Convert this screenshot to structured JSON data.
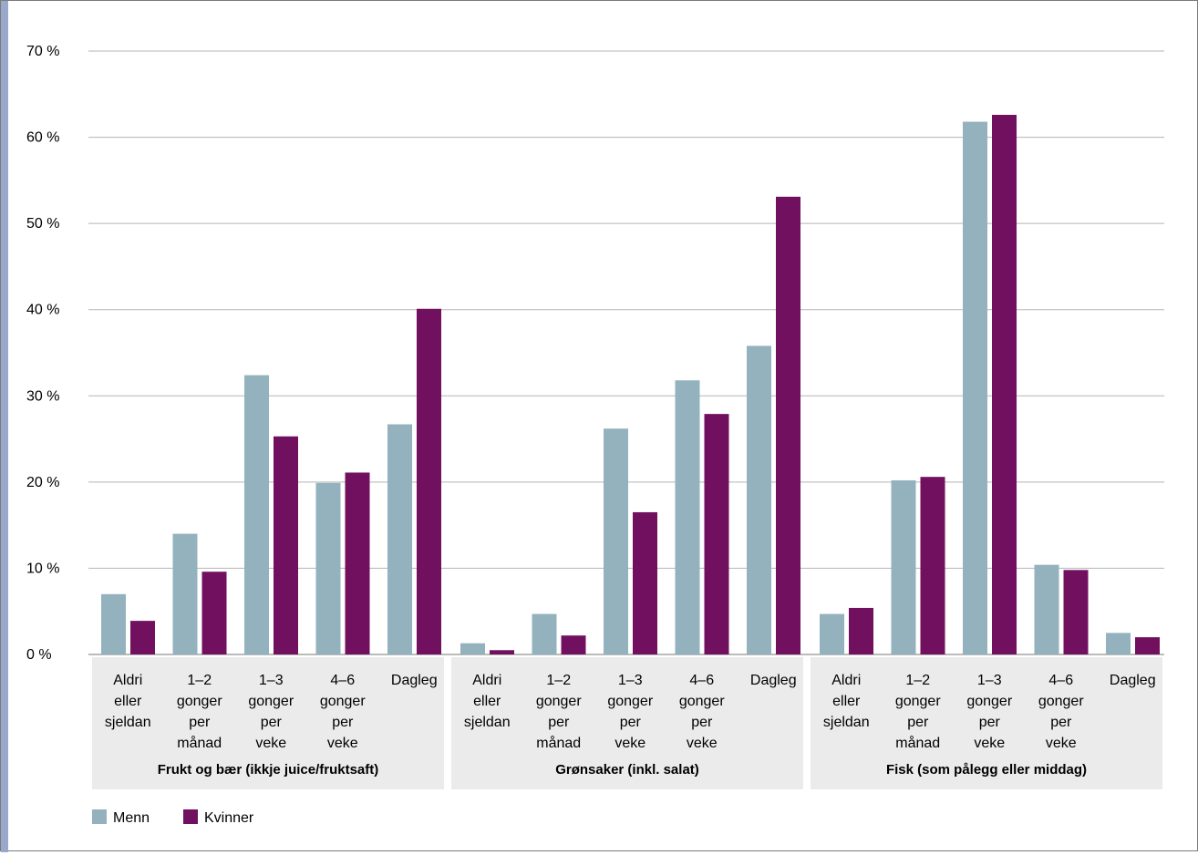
{
  "chart_data": {
    "type": "bar",
    "ylim": [
      0,
      70
    ],
    "yticks": [
      "0 %",
      "10 %",
      "20 %",
      "30 %",
      "40 %",
      "50 %",
      "60 %",
      "70 %"
    ],
    "grid": true,
    "legend_position": "bottom-left",
    "groups": [
      {
        "label": "Frukt og bær (ikkje juice/fruktsaft)",
        "categories": [
          [
            "Aldri",
            "eller",
            "sjeldan"
          ],
          [
            "1–2",
            "gonger",
            "per",
            "månad"
          ],
          [
            "1–3",
            "gonger",
            "per",
            "veke"
          ],
          [
            "4–6",
            "gonger",
            "per",
            "veke"
          ],
          [
            "Dagleg"
          ]
        ]
      },
      {
        "label": "Grønsaker (inkl. salat)",
        "categories": [
          [
            "Aldri",
            "eller",
            "sjeldan"
          ],
          [
            "1–2",
            "gonger",
            "per",
            "månad"
          ],
          [
            "1–3",
            "gonger",
            "per",
            "veke"
          ],
          [
            "4–6",
            "gonger",
            "per",
            "veke"
          ],
          [
            "Dagleg"
          ]
        ]
      },
      {
        "label": "Fisk (som pålegg eller middag)",
        "categories": [
          [
            "Aldri",
            "eller",
            "sjeldan"
          ],
          [
            "1–2",
            "gonger",
            "per",
            "månad"
          ],
          [
            "1–3",
            "gonger",
            "per",
            "veke"
          ],
          [
            "4–6",
            "gonger",
            "per",
            "veke"
          ],
          [
            "Dagleg"
          ]
        ]
      }
    ],
    "series": [
      {
        "name": "Menn",
        "color": "#93b2bd",
        "values": [
          7.0,
          14.0,
          32.4,
          19.9,
          26.7,
          1.3,
          4.7,
          26.2,
          31.8,
          35.8,
          4.7,
          20.2,
          61.8,
          10.4,
          2.5
        ]
      },
      {
        "name": "Kvinner",
        "color": "#721060",
        "values": [
          3.9,
          9.6,
          25.3,
          21.1,
          40.1,
          0.5,
          2.2,
          16.5,
          27.9,
          53.1,
          5.4,
          20.6,
          62.6,
          9.8,
          2.0
        ]
      }
    ]
  }
}
